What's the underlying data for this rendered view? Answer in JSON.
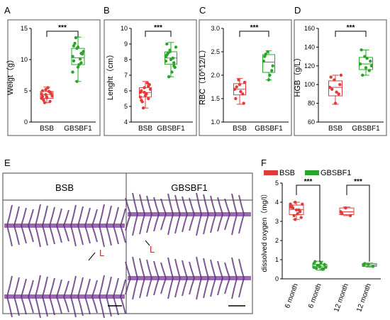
{
  "colors": {
    "bsb": "#e03c3c",
    "gbsbf1": "#2aa52a",
    "panel_border": "#333333"
  },
  "panel_e": {
    "label": "E",
    "left_title": "BSB",
    "right_title": "GBSBF1",
    "marker": "L"
  },
  "chart_data": [
    {
      "panel": "A",
      "type": "box",
      "ylabel": "Weigt（g）",
      "yticks": [
        "0",
        "5",
        "10",
        "15"
      ],
      "ylim": [
        0,
        15
      ],
      "categories": [
        "BSB",
        "GBSBF1"
      ],
      "significance": "***",
      "series": [
        {
          "points": [
            4.5,
            5.2,
            4.8,
            4.1,
            3.9,
            4.6,
            3.5,
            5.5,
            4.2,
            3.1,
            4.9,
            3.8,
            4.4,
            3.3,
            5.0,
            4.0
          ]
        },
        {
          "points": [
            10.5,
            11.8,
            9.5,
            12.2,
            8.8,
            10.9,
            12.6,
            9.2,
            11.3,
            13.5,
            10.1,
            8.0,
            6.5,
            11.0,
            9.8,
            12.0
          ]
        }
      ],
      "box": [
        {
          "q1": 3.8,
          "median": 4.4,
          "q3": 4.9,
          "min": 3.1,
          "max": 5.6
        },
        {
          "q1": 9.2,
          "median": 10.3,
          "q3": 11.8,
          "min": 6.5,
          "max": 13.6
        }
      ]
    },
    {
      "panel": "B",
      "type": "box",
      "ylabel": "Lenght（cm）",
      "yticks": [
        "4",
        "5",
        "6",
        "7",
        "8",
        "9",
        "10"
      ],
      "ylim": [
        4,
        10
      ],
      "categories": [
        "BSB",
        "GBSBF1"
      ],
      "significance": "***",
      "series": [
        {
          "points": [
            5.9,
            6.2,
            5.5,
            6.0,
            5.7,
            6.4,
            5.3,
            5.8,
            6.1,
            4.9,
            6.5,
            5.6,
            5.9,
            6.3,
            5.4
          ]
        },
        {
          "points": [
            8.2,
            8.6,
            7.8,
            9.0,
            8.0,
            7.5,
            8.4,
            7.2,
            8.8,
            6.9,
            8.1,
            7.9,
            8.5,
            7.6,
            8.3
          ]
        }
      ],
      "box": [
        {
          "q1": 5.6,
          "median": 5.9,
          "q3": 6.2,
          "min": 4.9,
          "max": 6.6
        },
        {
          "q1": 7.7,
          "median": 8.1,
          "q3": 8.5,
          "min": 6.9,
          "max": 9.1
        }
      ]
    },
    {
      "panel": "C",
      "type": "box",
      "ylabel": "RBC（10^12/L）",
      "yticks": [
        "1.0",
        "1.5",
        "2.0",
        "2.5",
        "3.0"
      ],
      "ylim": [
        1.0,
        3.0
      ],
      "categories": [
        "BSB",
        "GBSBF1"
      ],
      "significance": "***",
      "series": [
        {
          "points": [
            1.7,
            1.9,
            1.6,
            1.5,
            1.8,
            1.4,
            1.75,
            1.65,
            1.85
          ]
        },
        {
          "points": [
            2.3,
            2.5,
            2.1,
            2.4,
            1.9,
            2.2,
            2.45,
            2.0
          ]
        }
      ],
      "box": [
        {
          "q1": 1.58,
          "median": 1.7,
          "q3": 1.82,
          "min": 1.38,
          "max": 1.93
        },
        {
          "q1": 2.06,
          "median": 2.28,
          "q3": 2.44,
          "min": 1.9,
          "max": 2.52
        }
      ]
    },
    {
      "panel": "D",
      "type": "box",
      "ylabel": "HGB（g/L）",
      "yticks": [
        "60",
        "80",
        "100",
        "120",
        "140",
        "160"
      ],
      "ylim": [
        60,
        160
      ],
      "categories": [
        "BSB",
        "GBSBF1"
      ],
      "significance": "***",
      "series": [
        {
          "points": [
            97,
            105,
            90,
            108,
            80,
            100,
            95,
            92,
            110
          ]
        },
        {
          "points": [
            122,
            130,
            115,
            137,
            118,
            125,
            110,
            128,
            120
          ]
        }
      ],
      "box": [
        {
          "q1": 88,
          "median": 97,
          "q3": 104,
          "min": 79,
          "max": 110
        },
        {
          "q1": 116,
          "median": 122,
          "q3": 129,
          "min": 110,
          "max": 137
        }
      ]
    },
    {
      "panel": "F",
      "type": "box",
      "ylabel": "dissolved oxygen（mg/l）",
      "yticks": [
        "0",
        "1",
        "2",
        "3",
        "4",
        "5"
      ],
      "ylim": [
        0,
        5
      ],
      "legend": [
        "BSB",
        "GBSBF1"
      ],
      "categories": [
        "6 month",
        "6 month",
        "12 month",
        "12 month"
      ],
      "significance": [
        "***",
        "***"
      ],
      "series": [
        {
          "group": 0,
          "points": [
            3.9,
            4.0,
            3.5,
            3.8,
            3.6,
            3.2,
            3.7,
            3.4,
            3.9,
            3.3,
            3.6,
            3.75,
            3.1,
            3.55
          ]
        },
        {
          "group": 1,
          "points": [
            0.6,
            0.7,
            0.5,
            0.9,
            0.65,
            0.75,
            0.55,
            0.85,
            0.6,
            0.7,
            0.5,
            0.8
          ]
        },
        {
          "group": 0,
          "points": [
            3.5,
            3.7,
            3.3,
            3.4
          ]
        },
        {
          "group": 1,
          "points": [
            0.7,
            0.75,
            0.65,
            0.8
          ]
        }
      ],
      "box": [
        {
          "q1": 3.35,
          "median": 3.62,
          "q3": 3.85,
          "min": 3.1,
          "max": 4.0
        },
        {
          "q1": 0.58,
          "median": 0.66,
          "q3": 0.76,
          "min": 0.45,
          "max": 0.92
        },
        {
          "q1": 3.35,
          "median": 3.5,
          "q3": 3.7,
          "min": 3.3,
          "max": 3.75
        },
        {
          "q1": 0.65,
          "median": 0.72,
          "q3": 0.8,
          "min": 0.62,
          "max": 0.82
        }
      ]
    }
  ]
}
